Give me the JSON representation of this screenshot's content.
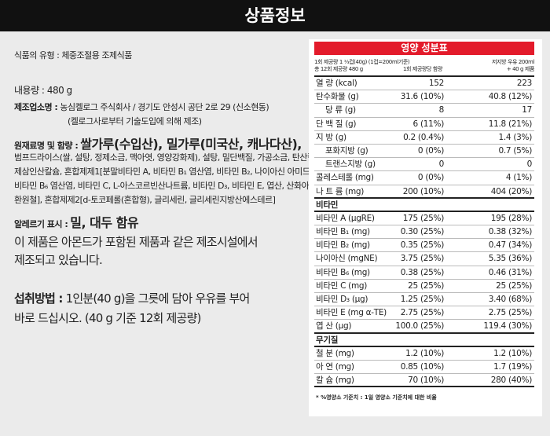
{
  "header": {
    "title": "상품정보"
  },
  "info": {
    "type_label": "식품의 유형 :",
    "type_value": "체중조절용 조제식품",
    "amount_label": "내용량 :",
    "amount_value": "480 g",
    "maker_label": "제조업소명 :",
    "maker_value": "농심켈로그 주식회사 / 경기도 안성시 공단 2로 29 (신소현동)",
    "maker_note": "(켈로그사로부터 기술도입에 의해 제조)",
    "ingredients_label": "원재료명 및 함량 :",
    "ingredients_main": "쌀가루(수입산), 밀가루(미국산, 캐나다산),",
    "ingredients_lines": [
      "범프드라이스(쌀, 설탕, 정제소금, 맥아엿, 영양강화제), 설탕, 밀단백질, 가공소금, 탄산칼슘,",
      "제삼인산칼슘, 혼합제제1[분말비타민 A, 비타민 B₁ 염산염, 비타민 B₂, 나이아신 아미드,",
      "비타민 B₆ 염산염, 비타민 C, L-아스코르빈산나트륨, 비타민 D₃, 비타민 E, 엽산, 산화아연,",
      "환원철], 혼합제제2[d-토코페롤(혼합형), 글리세린, 글리세린지방산에스테르]"
    ],
    "allergy_label": "알레르기 표시 :",
    "allergy_value": "밀, 대두 함유",
    "allergy_note_lines": [
      "이 제품은 아몬드가 포함된 제품과 같은 제조시설에서",
      "제조되고 있습니다."
    ],
    "usage_label": "섭취방법 :",
    "usage_lines": [
      "1인분(40 g)을 그릇에 담아 우유를 부어",
      "바로 드십시오. (40 g 기준 12회 제공량)"
    ]
  },
  "nutrition": {
    "title": "영양 성분표",
    "serving_lines": [
      "1회 제공량 1 ⅓컵(40g) (1컵=200ml기준)",
      "총 12회 제공량 480 g"
    ],
    "col1_header": "1회 제공량당 함량",
    "col2_header_lines": [
      "저지방 우유 200ml",
      "+ 40 g 제품"
    ],
    "rows": [
      {
        "name": "열  량 (kcal)",
        "v1": "152",
        "v2": "223"
      },
      {
        "name": "탄수화물 (g)",
        "v1": "31.6 (10%)",
        "v2": "40.8 (12%)"
      },
      {
        "name": "당  류 (g)",
        "v1": "8",
        "v2": "17",
        "indent": true
      },
      {
        "name": "단 백 질 (g)",
        "v1": "6 (11%)",
        "v2": "11.8 (21%)"
      },
      {
        "name": "지  방 (g)",
        "v1": "0.2 (0.4%)",
        "v2": "1.4 (3%)"
      },
      {
        "name": "포화지방 (g)",
        "v1": "0 (0%)",
        "v2": "0.7 (5%)",
        "indent": true
      },
      {
        "name": "트랜스지방 (g)",
        "v1": "0",
        "v2": "0",
        "indent": true
      },
      {
        "name": "콜레스테롤 (mg)",
        "v1": "0 (0%)",
        "v2": "4 (1%)"
      },
      {
        "name": "나 트 륨 (mg)",
        "v1": "200 (10%)",
        "v2": "404 (20%)",
        "thick": true
      },
      {
        "name": "비타민",
        "section": true
      },
      {
        "name": "비타민 A (μgRE)",
        "v1": "175 (25%)",
        "v2": "195 (28%)"
      },
      {
        "name": "비타민 B₁ (mg)",
        "v1": "0.30 (25%)",
        "v2": "0.38 (32%)"
      },
      {
        "name": "비타민 B₂ (mg)",
        "v1": "0.35 (25%)",
        "v2": "0.47 (34%)"
      },
      {
        "name": "나이아신 (mgNE)",
        "v1": "3.75 (25%)",
        "v2": "5.35 (36%)"
      },
      {
        "name": "비타민 B₆ (mg)",
        "v1": "0.38 (25%)",
        "v2": "0.46 (31%)"
      },
      {
        "name": "비타민 C (mg)",
        "v1": "25 (25%)",
        "v2": "25 (25%)"
      },
      {
        "name": "비타민 D₃ (μg)",
        "v1": "1.25 (25%)",
        "v2": "3.40 (68%)"
      },
      {
        "name": "비타민 E (mg α-TE)",
        "v1": "2.75 (25%)",
        "v2": "2.75 (25%)"
      },
      {
        "name": "엽  산 (μg)",
        "v1": "100.0 (25%)",
        "v2": "119.4 (30%)",
        "thick": true
      },
      {
        "name": "무기질",
        "section": true
      },
      {
        "name": "철  분 (mg)",
        "v1": "1.2 (10%)",
        "v2": "1.2 (10%)"
      },
      {
        "name": "아  연 (mg)",
        "v1": "0.85 (10%)",
        "v2": "1.7 (19%)"
      },
      {
        "name": "칼  슘 (mg)",
        "v1": "70 (10%)",
        "v2": "280 (40%)",
        "thick": true
      }
    ],
    "footnote": "* %영양소 기준치 : 1일 영양소 기준치에 대한 비율",
    "accent": "#e31b2b"
  }
}
